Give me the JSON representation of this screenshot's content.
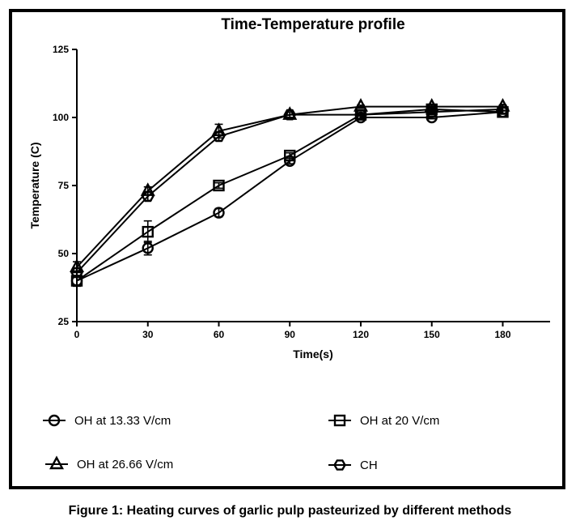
{
  "caption": "Figure 1: Heating curves of garlic pulp pasteurized by different methods",
  "chart_data": {
    "type": "line",
    "title": "Time-Temperature profile",
    "xlabel": "Time(s)",
    "ylabel": "Temperature (C)",
    "xlim": [
      0,
      200
    ],
    "ylim": [
      25,
      125
    ],
    "xticks": [
      0,
      30,
      60,
      90,
      120,
      150,
      180
    ],
    "yticks": [
      25,
      50,
      75,
      100,
      125
    ],
    "grid": false,
    "legend": "bottom, two columns",
    "series": [
      {
        "name": "OH  at 13.33 V/cm",
        "marker": "circle",
        "color": "#000000",
        "x": [
          0,
          30,
          60,
          90,
          120,
          150,
          180
        ],
        "y": [
          40,
          52,
          65,
          84,
          100,
          100,
          102
        ],
        "err": [
          1.5,
          2.5,
          1.5,
          1.0,
          0.5,
          0.5,
          0.5
        ]
      },
      {
        "name": "OH at 20 V/cm",
        "marker": "square",
        "color": "#000000",
        "x": [
          0,
          30,
          60,
          90,
          120,
          150,
          180
        ],
        "y": [
          40,
          58,
          75,
          86,
          101,
          103,
          102
        ],
        "err": [
          2.0,
          4.0,
          1.0,
          1.0,
          0.5,
          0.5,
          0.5
        ]
      },
      {
        "name": "OH at 26.66 V/cm",
        "marker": "triangle",
        "color": "#000000",
        "x": [
          0,
          30,
          60,
          90,
          120,
          150,
          180
        ],
        "y": [
          45,
          73,
          95,
          101,
          104,
          104,
          104
        ],
        "err": [
          2.0,
          1.5,
          2.5,
          1.0,
          0.5,
          0.5,
          0.5
        ]
      },
      {
        "name": "CH",
        "marker": "hexagon",
        "color": "#000000",
        "x": [
          0,
          30,
          60,
          90,
          120,
          150,
          180
        ],
        "y": [
          43,
          71,
          93,
          101,
          101,
          102,
          103
        ],
        "err": [
          1.5,
          1.5,
          1.5,
          1.0,
          0.5,
          0.5,
          0.5
        ]
      }
    ]
  }
}
